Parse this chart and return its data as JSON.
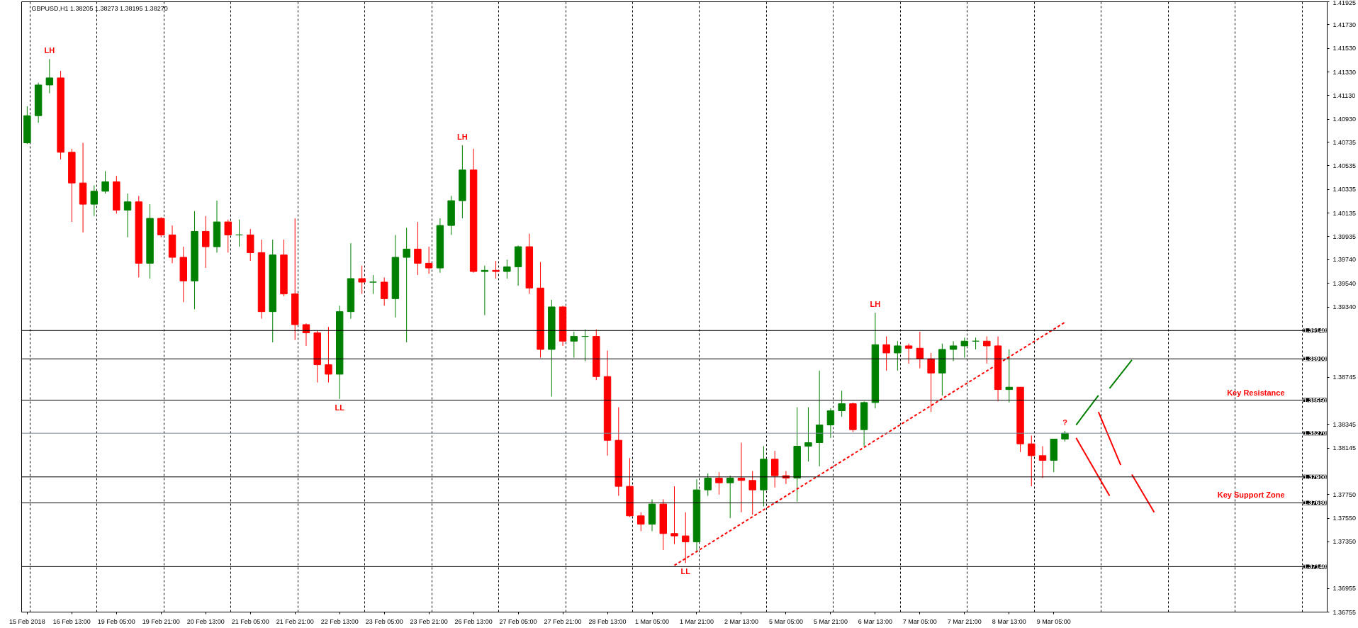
{
  "chart_data": {
    "type": "candlestick",
    "title": "GBPUSD,H1  1.38205 1.38273 1.38195 1.38270",
    "categories": [
      "15 Feb 2018",
      null,
      null,
      null,
      "16 Feb 13:00",
      null,
      null,
      null,
      "19 Feb 05:00",
      null,
      null,
      null,
      "19 Feb 21:00",
      null,
      null,
      null,
      "20 Feb 13:00",
      null,
      null,
      null,
      "21 Feb 05:00",
      null,
      null,
      null,
      "21 Feb 21:00",
      null,
      null,
      null,
      "22 Feb 13:00",
      null,
      null,
      null,
      "23 Feb 05:00",
      null,
      null,
      null,
      "23 Feb 21:00",
      null,
      null,
      null,
      "26 Feb 13:00",
      null,
      null,
      null,
      "27 Feb 05:00",
      null,
      null,
      null,
      "27 Feb 21:00",
      null,
      null,
      null,
      "28 Feb 13:00",
      null,
      null,
      null,
      "1 Mar 05:00",
      null,
      null,
      null,
      "1 Mar 21:00",
      null,
      null,
      null,
      "2 Mar 13:00",
      null,
      null,
      null,
      "5 Mar 05:00",
      null,
      null,
      null,
      "5 Mar 21:00",
      null,
      null,
      null,
      "6 Mar 13:00",
      null,
      null,
      null,
      "7 Mar 05:00",
      null,
      null,
      null,
      "7 Mar 21:00",
      null,
      null,
      null,
      "8 Mar 13:00",
      null,
      null,
      null,
      "9 Mar 05:00",
      null,
      null,
      null,
      null,
      null,
      null,
      null,
      null,
      null,
      null,
      null,
      null,
      null,
      null,
      null,
      null,
      null,
      null,
      null,
      null,
      null,
      null,
      null,
      null
    ],
    "ohlc": [
      [
        1.4073,
        1.4104,
        1.4072,
        1.4096
      ],
      [
        1.4096,
        1.4124,
        1.409,
        1.4122
      ],
      [
        1.4122,
        1.4144,
        1.4115,
        1.4128
      ],
      [
        1.4128,
        1.4134,
        1.4059,
        1.4065
      ],
      [
        1.4065,
        1.4068,
        1.4006,
        1.4039
      ],
      [
        1.4039,
        1.4073,
        1.3997,
        1.4021
      ],
      [
        1.4021,
        1.4037,
        1.4011,
        1.4032
      ],
      [
        1.4032,
        1.4049,
        1.403,
        1.404
      ],
      [
        1.404,
        1.4045,
        1.4013,
        1.4016
      ],
      [
        1.4016,
        1.403,
        1.3993,
        1.4023
      ],
      [
        1.4023,
        1.4028,
        1.3959,
        1.3971
      ],
      [
        1.3971,
        1.4021,
        1.3958,
        1.4009
      ],
      [
        1.4009,
        1.401,
        1.3993,
        1.3995
      ],
      [
        1.3995,
        1.4003,
        1.3971,
        1.3976
      ],
      [
        1.3976,
        1.3985,
        1.3938,
        1.3956
      ],
      [
        1.3956,
        1.4015,
        1.3932,
        1.3998
      ],
      [
        1.3998,
        1.4011,
        1.3967,
        1.3985
      ],
      [
        1.3985,
        1.4024,
        1.398,
        1.4006
      ],
      [
        1.4006,
        1.4008,
        1.398,
        1.3995
      ],
      [
        1.3995,
        1.4008,
        1.3985,
        1.3995
      ],
      [
        1.3995,
        1.4,
        1.3973,
        1.398
      ],
      [
        1.398,
        1.3991,
        1.3924,
        1.393
      ],
      [
        1.393,
        1.3991,
        1.3904,
        1.3978
      ],
      [
        1.3978,
        1.3991,
        1.3943,
        1.3945
      ],
      [
        1.3945,
        1.4009,
        1.3906,
        1.3919
      ],
      [
        1.3919,
        1.392,
        1.3901,
        1.3912
      ],
      [
        1.3912,
        1.3914,
        1.387,
        1.3885
      ],
      [
        1.3885,
        1.3917,
        1.387,
        1.3877
      ],
      [
        1.3877,
        1.3935,
        1.3856,
        1.393
      ],
      [
        1.393,
        1.3988,
        1.3924,
        1.3958
      ],
      [
        1.3958,
        1.3969,
        1.3945,
        1.3955
      ],
      [
        1.3955,
        1.3961,
        1.3945,
        1.3955
      ],
      [
        1.3955,
        1.3959,
        1.3935,
        1.3941
      ],
      [
        1.3941,
        1.3995,
        1.3925,
        1.3976
      ],
      [
        1.3976,
        1.4001,
        1.3904,
        1.3983
      ],
      [
        1.3983,
        1.4006,
        1.3961,
        1.3971
      ],
      [
        1.3971,
        1.3985,
        1.3962,
        1.3967
      ],
      [
        1.3967,
        1.4009,
        1.3963,
        1.4003
      ],
      [
        1.4003,
        1.4028,
        1.3995,
        1.4024
      ],
      [
        1.4024,
        1.4071,
        1.4009,
        1.405
      ],
      [
        1.405,
        1.4068,
        1.3963,
        1.3964
      ],
      [
        1.3964,
        1.3969,
        1.3927,
        1.3965
      ],
      [
        1.3965,
        1.3973,
        1.3958,
        1.3964
      ],
      [
        1.3964,
        1.3974,
        1.3958,
        1.3968
      ],
      [
        1.3968,
        1.3986,
        1.3952,
        1.3985
      ],
      [
        1.3985,
        1.3996,
        1.3945,
        1.395
      ],
      [
        1.395,
        1.3972,
        1.3891,
        1.3898
      ],
      [
        1.3898,
        1.394,
        1.3858,
        1.3934
      ],
      [
        1.3934,
        1.3935,
        1.3901,
        1.3905
      ],
      [
        1.3905,
        1.3913,
        1.3891,
        1.3909
      ],
      [
        1.3909,
        1.3915,
        1.3888,
        1.3909
      ],
      [
        1.3909,
        1.3915,
        1.3872,
        1.3875
      ],
      [
        1.3875,
        1.3897,
        1.3808,
        1.3821
      ],
      [
        1.3821,
        1.3849,
        1.3774,
        1.3782
      ],
      [
        1.3782,
        1.3806,
        1.3756,
        1.3757
      ],
      [
        1.3757,
        1.376,
        1.3744,
        1.375
      ],
      [
        1.375,
        1.3771,
        1.3744,
        1.3767
      ],
      [
        1.3767,
        1.3771,
        1.3728,
        1.3742
      ],
      [
        1.3742,
        1.3782,
        1.3733,
        1.374
      ],
      [
        1.374,
        1.376,
        1.3717,
        1.3735
      ],
      [
        1.3735,
        1.3788,
        1.3726,
        1.3779
      ],
      [
        1.3779,
        1.3793,
        1.3774,
        1.3789
      ],
      [
        1.3789,
        1.3794,
        1.3775,
        1.3785
      ],
      [
        1.3785,
        1.3791,
        1.3755,
        1.3789
      ],
      [
        1.3789,
        1.3819,
        1.376,
        1.3787
      ],
      [
        1.3787,
        1.3795,
        1.3758,
        1.3779
      ],
      [
        1.3779,
        1.3816,
        1.3765,
        1.3805
      ],
      [
        1.3805,
        1.3812,
        1.3781,
        1.3791
      ],
      [
        1.3791,
        1.3795,
        1.3784,
        1.3789
      ],
      [
        1.3789,
        1.3849,
        1.3769,
        1.3816
      ],
      [
        1.3816,
        1.3849,
        1.3803,
        1.3819
      ],
      [
        1.3819,
        1.388,
        1.3799,
        1.3834
      ],
      [
        1.3834,
        1.3848,
        1.3823,
        1.3846
      ],
      [
        1.3846,
        1.3863,
        1.3841,
        1.3852
      ],
      [
        1.3852,
        1.3853,
        1.3828,
        1.383
      ],
      [
        1.383,
        1.3854,
        1.3816,
        1.3853
      ],
      [
        1.3853,
        1.3929,
        1.3848,
        1.3902
      ],
      [
        1.3902,
        1.3909,
        1.388,
        1.3895
      ],
      [
        1.3895,
        1.3905,
        1.388,
        1.3901
      ],
      [
        1.3901,
        1.3903,
        1.3886,
        1.3899
      ],
      [
        1.3899,
        1.3913,
        1.3882,
        1.389
      ],
      [
        1.389,
        1.3895,
        1.3845,
        1.3878
      ],
      [
        1.3878,
        1.3903,
        1.3859,
        1.3898
      ],
      [
        1.3898,
        1.3905,
        1.3888,
        1.3901
      ],
      [
        1.3901,
        1.3908,
        1.3891,
        1.3905
      ],
      [
        1.3905,
        1.3908,
        1.3898,
        1.3905
      ],
      [
        1.3905,
        1.3909,
        1.3886,
        1.3901
      ],
      [
        1.3901,
        1.3909,
        1.3854,
        1.3864
      ],
      [
        1.3864,
        1.3898,
        1.3853,
        1.3866
      ],
      [
        1.3866,
        1.3866,
        1.3811,
        1.3818
      ],
      [
        1.3818,
        1.3825,
        1.3782,
        1.3808
      ],
      [
        1.3808,
        1.3816,
        1.3789,
        1.3804
      ],
      [
        1.3804,
        1.3822,
        1.3794,
        1.3822
      ],
      [
        1.3822,
        1.3829,
        1.382,
        1.3827
      ],
      null,
      null,
      null,
      null,
      null,
      null,
      null,
      null,
      null,
      null,
      null,
      null,
      null,
      null,
      null,
      null,
      null,
      null,
      null,
      null,
      null,
      null,
      null
    ],
    "colors": [
      "#008000",
      "#008000",
      "#008000",
      "#ff0000",
      "#ff0000",
      "#ff0000",
      "#008000",
      "#008000",
      "#ff0000",
      "#008000",
      "#ff0000",
      "#008000",
      "#ff0000",
      "#ff0000",
      "#ff0000",
      "#008000",
      "#ff0000",
      "#008000",
      "#ff0000",
      "#008000",
      "#ff0000",
      "#ff0000",
      "#008000",
      "#ff0000",
      "#ff0000",
      "#ff0000",
      "#ff0000",
      "#ff0000",
      "#008000",
      "#008000",
      "#ff0000",
      "#008000",
      "#ff0000",
      "#008000",
      "#008000",
      "#ff0000",
      "#ff0000",
      "#008000",
      "#008000",
      "#008000",
      "#ff0000",
      "#008000",
      "#ff0000",
      "#008000",
      "#008000",
      "#ff0000",
      "#ff0000",
      "#008000",
      "#ff0000",
      "#008000",
      "#008000",
      "#ff0000",
      "#ff0000",
      "#ff0000",
      "#ff0000",
      "#ff0000",
      "#008000",
      "#ff0000",
      "#ff0000",
      "#ff0000",
      "#008000",
      "#008000",
      "#ff0000",
      "#008000",
      "#ff0000",
      "#ff0000",
      "#008000",
      "#ff0000",
      "#ff0000",
      "#008000",
      "#008000",
      "#008000",
      "#008000",
      "#008000",
      "#ff0000",
      "#008000",
      "#008000",
      "#ff0000",
      "#008000",
      "#ff0000",
      "#ff0000",
      "#ff0000",
      "#008000",
      "#008000",
      "#008000",
      "#008000",
      "#ff0000",
      "#ff0000",
      "#008000",
      "#ff0000",
      "#ff0000",
      "#ff0000",
      "#008000",
      "#008000",
      null,
      null,
      null,
      null,
      null,
      null,
      null,
      null,
      null,
      null,
      null,
      null,
      null,
      null,
      null,
      null,
      null,
      null,
      null,
      null,
      null,
      null,
      null
    ],
    "value_labels": [
      null,
      null,
      "LH",
      null,
      null,
      null,
      null,
      null,
      null,
      null,
      null,
      null,
      null,
      null,
      null,
      null,
      null,
      null,
      null,
      null,
      null,
      null,
      null,
      null,
      null,
      null,
      null,
      null,
      "LL",
      null,
      null,
      null,
      null,
      null,
      null,
      null,
      null,
      null,
      null,
      "LH",
      null,
      null,
      null,
      null,
      null,
      null,
      null,
      null,
      null,
      null,
      null,
      null,
      null,
      null,
      null,
      null,
      null,
      null,
      null,
      "LL",
      null,
      null,
      null,
      null,
      null,
      null,
      null,
      null,
      null,
      null,
      null,
      null,
      null,
      null,
      null,
      null,
      "LH",
      null,
      null,
      null,
      null,
      null,
      null,
      null,
      null,
      null,
      null,
      null,
      null,
      null,
      null,
      null,
      null,
      "?",
      null,
      null,
      null,
      null,
      null,
      null,
      null,
      null,
      null,
      null,
      null,
      null,
      null,
      null,
      null,
      null,
      null,
      null,
      null,
      null,
      null,
      null,
      null
    ],
    "series": [
      {
        "type": "line",
        "color": "#ff0000",
        "line_style": "dashed",
        "values": [
          null,
          null,
          null,
          null,
          null,
          null,
          null,
          null,
          null,
          null,
          null,
          null,
          null,
          null,
          null,
          null,
          null,
          null,
          null,
          null,
          null,
          null,
          null,
          null,
          null,
          null,
          null,
          null,
          null,
          null,
          null,
          null,
          null,
          null,
          null,
          null,
          null,
          null,
          null,
          null,
          null,
          null,
          null,
          null,
          null,
          null,
          null,
          null,
          null,
          null,
          null,
          null,
          null,
          null,
          null,
          null,
          null,
          null,
          1.3715,
          null,
          null,
          null,
          null,
          null,
          null,
          null,
          null,
          null,
          null,
          null,
          null,
          null,
          null,
          null,
          null,
          null,
          null,
          null,
          null,
          null,
          null,
          null,
          null,
          null,
          null,
          null,
          null,
          null,
          null,
          null,
          null,
          null,
          null,
          1.3921,
          null,
          null,
          null,
          null,
          null,
          null,
          null,
          null,
          null,
          null,
          null,
          null,
          null,
          null,
          null,
          null,
          null,
          null,
          null,
          null,
          null,
          null,
          null
        ]
      },
      {
        "type": "line",
        "color": "#008000",
        "line_style": "solid",
        "values": [
          null,
          null,
          null,
          null,
          null,
          null,
          null,
          null,
          null,
          null,
          null,
          null,
          null,
          null,
          null,
          null,
          null,
          null,
          null,
          null,
          null,
          null,
          null,
          null,
          null,
          null,
          null,
          null,
          null,
          null,
          null,
          null,
          null,
          null,
          null,
          null,
          null,
          null,
          null,
          null,
          null,
          null,
          null,
          null,
          null,
          null,
          null,
          null,
          null,
          null,
          null,
          null,
          null,
          null,
          null,
          null,
          null,
          null,
          null,
          null,
          null,
          null,
          null,
          null,
          null,
          null,
          null,
          null,
          null,
          null,
          null,
          null,
          null,
          null,
          null,
          null,
          null,
          null,
          null,
          null,
          null,
          null,
          null,
          null,
          null,
          null,
          null,
          null,
          null,
          null,
          null,
          null,
          null,
          null,
          1.3834,
          null,
          1.3859,
          null,
          null,
          null,
          null,
          null,
          null,
          null,
          null,
          null,
          null,
          null,
          null,
          null,
          null,
          null,
          null,
          null,
          null,
          null,
          null
        ]
      },
      {
        "type": "line",
        "color": "#008000",
        "line_style": "solid",
        "values": [
          null,
          null,
          null,
          null,
          null,
          null,
          null,
          null,
          null,
          null,
          null,
          null,
          null,
          null,
          null,
          null,
          null,
          null,
          null,
          null,
          null,
          null,
          null,
          null,
          null,
          null,
          null,
          null,
          null,
          null,
          null,
          null,
          null,
          null,
          null,
          null,
          null,
          null,
          null,
          null,
          null,
          null,
          null,
          null,
          null,
          null,
          null,
          null,
          null,
          null,
          null,
          null,
          null,
          null,
          null,
          null,
          null,
          null,
          null,
          null,
          null,
          null,
          null,
          null,
          null,
          null,
          null,
          null,
          null,
          null,
          null,
          null,
          null,
          null,
          null,
          null,
          null,
          null,
          null,
          null,
          null,
          null,
          null,
          null,
          null,
          null,
          null,
          null,
          null,
          null,
          null,
          null,
          null,
          null,
          null,
          null,
          null,
          1.3865,
          null,
          1.3889,
          null,
          null,
          null,
          null,
          null,
          null,
          null,
          null,
          null,
          null,
          null,
          null,
          null,
          null,
          null,
          null,
          null
        ]
      },
      {
        "type": "line",
        "color": "#ff0000",
        "line_style": "solid",
        "values": [
          null,
          null,
          null,
          null,
          null,
          null,
          null,
          null,
          null,
          null,
          null,
          null,
          null,
          null,
          null,
          null,
          null,
          null,
          null,
          null,
          null,
          null,
          null,
          null,
          null,
          null,
          null,
          null,
          null,
          null,
          null,
          null,
          null,
          null,
          null,
          null,
          null,
          null,
          null,
          null,
          null,
          null,
          null,
          null,
          null,
          null,
          null,
          null,
          null,
          null,
          null,
          null,
          null,
          null,
          null,
          null,
          null,
          null,
          null,
          null,
          null,
          null,
          null,
          null,
          null,
          null,
          null,
          null,
          null,
          null,
          null,
          null,
          null,
          null,
          null,
          null,
          null,
          null,
          null,
          null,
          null,
          null,
          null,
          null,
          null,
          null,
          null,
          null,
          null,
          null,
          null,
          null,
          null,
          null,
          1.3823,
          null,
          null,
          1.3774,
          null,
          null,
          null,
          null,
          null,
          null,
          null,
          null,
          null,
          null,
          null,
          null,
          null,
          null,
          null,
          null,
          null,
          null,
          null
        ]
      },
      {
        "type": "line",
        "color": "#ff0000",
        "line_style": "solid",
        "values": [
          null,
          null,
          null,
          null,
          null,
          null,
          null,
          null,
          null,
          null,
          null,
          null,
          null,
          null,
          null,
          null,
          null,
          null,
          null,
          null,
          null,
          null,
          null,
          null,
          null,
          null,
          null,
          null,
          null,
          null,
          null,
          null,
          null,
          null,
          null,
          null,
          null,
          null,
          null,
          null,
          null,
          null,
          null,
          null,
          null,
          null,
          null,
          null,
          null,
          null,
          null,
          null,
          null,
          null,
          null,
          null,
          null,
          null,
          null,
          null,
          null,
          null,
          null,
          null,
          null,
          null,
          null,
          null,
          null,
          null,
          null,
          null,
          null,
          null,
          null,
          null,
          null,
          null,
          null,
          null,
          null,
          null,
          null,
          null,
          null,
          null,
          null,
          null,
          null,
          null,
          null,
          null,
          null,
          null,
          null,
          null,
          1.3845,
          null,
          1.38,
          null,
          null,
          null,
          null,
          null,
          null,
          null,
          null,
          null,
          null,
          null,
          null,
          null,
          null,
          null,
          null,
          null,
          null
        ]
      },
      {
        "type": "line",
        "color": "#ff0000",
        "line_style": "solid",
        "values": [
          null,
          null,
          null,
          null,
          null,
          null,
          null,
          null,
          null,
          null,
          null,
          null,
          null,
          null,
          null,
          null,
          null,
          null,
          null,
          null,
          null,
          null,
          null,
          null,
          null,
          null,
          null,
          null,
          null,
          null,
          null,
          null,
          null,
          null,
          null,
          null,
          null,
          null,
          null,
          null,
          null,
          null,
          null,
          null,
          null,
          null,
          null,
          null,
          null,
          null,
          null,
          null,
          null,
          null,
          null,
          null,
          null,
          null,
          null,
          null,
          null,
          null,
          null,
          null,
          null,
          null,
          null,
          null,
          null,
          null,
          null,
          null,
          null,
          null,
          null,
          null,
          null,
          null,
          null,
          null,
          null,
          null,
          null,
          null,
          null,
          null,
          null,
          null,
          null,
          null,
          null,
          null,
          null,
          null,
          null,
          null,
          null,
          null,
          null,
          1.3792,
          null,
          1.376,
          null,
          null,
          null,
          null,
          null,
          null,
          null,
          null,
          null,
          null,
          null,
          null,
          null,
          null,
          null
        ]
      }
    ],
    "ylim": [
      1.36755,
      1.41925
    ],
    "yticks": [
      {
        "value": 1.41925,
        "label": "1.41925"
      },
      {
        "value": 1.4173,
        "label": "1.41730"
      },
      {
        "value": 1.4153,
        "label": "1.41530"
      },
      {
        "value": 1.4133,
        "label": "1.41330"
      },
      {
        "value": 1.4113,
        "label": "1.41130"
      },
      {
        "value": 1.4093,
        "label": "1.40930"
      },
      {
        "value": 1.40735,
        "label": "1.40735"
      },
      {
        "value": 1.40535,
        "label": "1.40535"
      },
      {
        "value": 1.40335,
        "label": "1.40335"
      },
      {
        "value": 1.40135,
        "label": "1.40135"
      },
      {
        "value": 1.39935,
        "label": "1.39935"
      },
      {
        "value": 1.3974,
        "label": "1.39740"
      },
      {
        "value": 1.3954,
        "label": "1.39540"
      },
      {
        "value": 1.3934,
        "label": "1.39340"
      },
      {
        "value": 1.38745,
        "label": "1.38745"
      },
      {
        "value": 1.38345,
        "label": "1.38345"
      },
      {
        "value": 1.38145,
        "label": "1.38145"
      },
      {
        "value": 1.3775,
        "label": "1.37750"
      },
      {
        "value": 1.3755,
        "label": "1.37550"
      },
      {
        "value": 1.3735,
        "label": "1.37350"
      },
      {
        "value": 1.36955,
        "label": "1.36955"
      },
      {
        "value": 1.36755,
        "label": "1.36755"
      }
    ],
    "ref_lines": [
      {
        "axis": "y",
        "value": 1.3914,
        "label": "1.39140",
        "color": "#000000"
      },
      {
        "axis": "y",
        "value": 1.389,
        "label": "1.38900",
        "color": "#000000"
      },
      {
        "axis": "y",
        "value": 1.3855,
        "label": "1.38550",
        "color": "#000000"
      },
      {
        "axis": "y",
        "value": 1.3827,
        "label": "1.38270",
        "color": "#778899"
      },
      {
        "axis": "y",
        "value": 1.379,
        "label": "1.37900",
        "color": "#000000"
      },
      {
        "axis": "y",
        "value": 1.3768,
        "label": "1.37680",
        "color": "#000000"
      },
      {
        "axis": "y",
        "value": 1.3714,
        "label": "1.37140",
        "color": "#000000"
      }
    ],
    "annotations": [
      {
        "text": "Key Resistance",
        "y": 1.3855
      },
      {
        "text": "Key Support Zone",
        "y": 1.3768
      }
    ],
    "grid": "x"
  }
}
